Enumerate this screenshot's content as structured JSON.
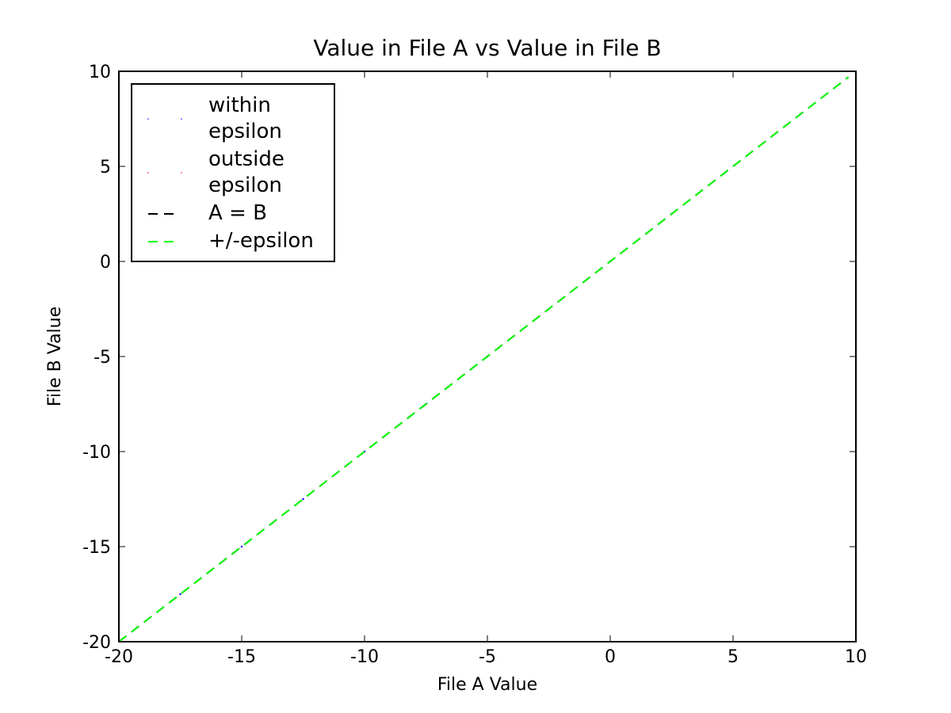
{
  "chart_data": {
    "type": "scatter",
    "title": "Value in File A vs Value in File B",
    "x_label": "File A Value",
    "y_label": "File B Value",
    "xlim": [
      -20,
      10
    ],
    "ylim": [
      -20,
      10
    ],
    "xticks": [
      -20,
      -15,
      -10,
      -5,
      0,
      5,
      10
    ],
    "yticks": [
      -20,
      -15,
      -10,
      -5,
      0,
      5,
      10
    ],
    "legend": "upper left",
    "grid": false,
    "series": [
      {
        "name": "within epsilon",
        "color": "#0000ff",
        "style": "markers",
        "x": [
          -20,
          -17.5,
          -15,
          -12.5,
          -10,
          -7.5,
          -5,
          -2.5,
          0,
          2.5
        ],
        "values": [
          -20,
          -17.5,
          -15,
          -12.5,
          -10,
          -7.5,
          -5,
          -2.5,
          0,
          2.5
        ]
      },
      {
        "name": "outside epsilon",
        "color": "#ff0000",
        "style": "markers",
        "x": [],
        "values": []
      },
      {
        "name": "A = B",
        "color": "#000000",
        "style": "dashed",
        "x": [
          -20,
          9.7
        ],
        "values": [
          -20,
          9.7
        ]
      },
      {
        "name": "+/-epsilon",
        "color": "#00ff00",
        "style": "dashed",
        "x": [
          -20,
          9.7
        ],
        "values": [
          -20,
          9.7
        ]
      }
    ]
  }
}
